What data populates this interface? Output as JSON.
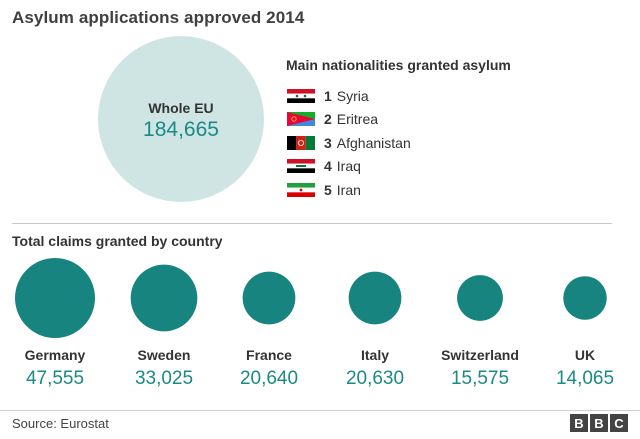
{
  "title": "Asylum applications approved 2014",
  "whole_eu": {
    "label": "Whole EU",
    "value": "184,665"
  },
  "nationalities": {
    "heading": "Main nationalities granted asylum",
    "items": [
      {
        "rank": "1",
        "name": "Syria",
        "flag_icon": "syria-flag-icon"
      },
      {
        "rank": "2",
        "name": "Eritrea",
        "flag_icon": "eritrea-flag-icon"
      },
      {
        "rank": "3",
        "name": "Afghanistan",
        "flag_icon": "afghanistan-flag-icon"
      },
      {
        "rank": "4",
        "name": "Iraq",
        "flag_icon": "iraq-flag-icon"
      },
      {
        "rank": "5",
        "name": "Iran",
        "flag_icon": "iran-flag-icon"
      }
    ]
  },
  "claims_heading": "Total claims granted by country",
  "chart_data": {
    "type": "bubble",
    "title": "Total claims granted by country",
    "categories": [
      "Germany",
      "Sweden",
      "France",
      "Italy",
      "Switzerland",
      "UK"
    ],
    "values": [
      47555,
      33025,
      20640,
      20630,
      15575,
      14065
    ],
    "value_labels": [
      "47,555",
      "33,025",
      "20,640",
      "20,630",
      "15,575",
      "14,065"
    ],
    "total": {
      "label": "Whole EU",
      "value": 184665
    }
  },
  "colors": {
    "bubble": "#17847f",
    "big_bubble": "#cfe5e4",
    "value_text": "#1a8a86"
  },
  "source": "Source: Eurostat",
  "logo": [
    "B",
    "B",
    "C"
  ]
}
